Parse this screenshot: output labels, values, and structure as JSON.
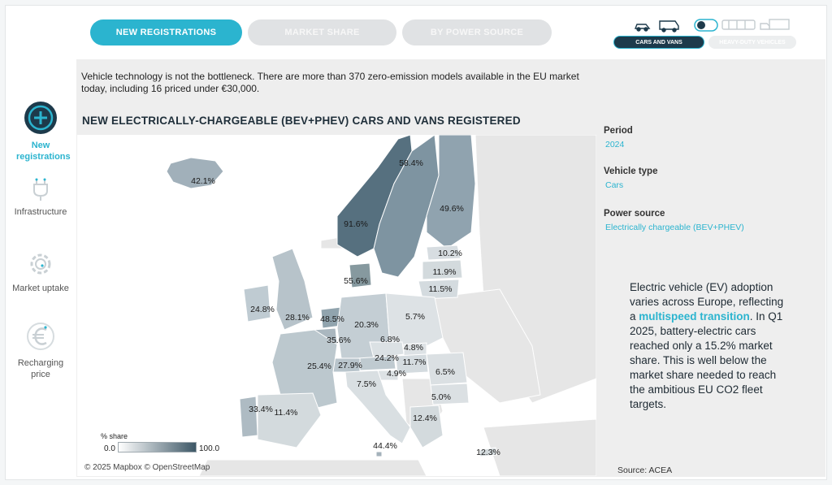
{
  "tabs": [
    {
      "label": "NEW REGISTRATIONS",
      "active": true
    },
    {
      "label": "MARKET SHARE",
      "active": false
    },
    {
      "label": "BY POWER SOURCE",
      "active": false
    }
  ],
  "vehicle_toggle": {
    "cars_label": "CARS AND VANS",
    "heavy_label": "HEAVY-DUTY VEHICLES",
    "selected": "cars"
  },
  "sidebar": {
    "items": [
      {
        "label": "New registrations",
        "icon": "plus-circle-icon",
        "active": true
      },
      {
        "label": "Infrastructure",
        "icon": "plug-icon",
        "active": false
      },
      {
        "label": "Market uptake",
        "icon": "gear-icon",
        "active": false
      },
      {
        "label": "Recharging price",
        "icon": "euro-icon",
        "active": false
      }
    ]
  },
  "intro_text": "Vehicle technology is not the bottleneck. There are more than 370 zero-emission models available in the EU market today, including 16 priced under €30,000.",
  "map": {
    "title": "NEW ELECTRICALLY-CHARGEABLE (BEV+PHEV) CARS AND VANS REGISTERED",
    "copyright": "© 2025 Mapbox © OpenStreetMap",
    "legend": {
      "title": "% share",
      "min": "0.0",
      "max": "100.0"
    },
    "values": [
      {
        "country": "Iceland",
        "label": "42.1%"
      },
      {
        "country": "Norway",
        "label": "91.6%"
      },
      {
        "country": "Sweden",
        "label": "58.4%"
      },
      {
        "country": "Finland",
        "label": "49.6%"
      },
      {
        "country": "Estonia",
        "label": "10.2%"
      },
      {
        "country": "Latvia",
        "label": "11.9%"
      },
      {
        "country": "Lithuania",
        "label": "11.5%"
      },
      {
        "country": "Denmark",
        "label": "55.6%"
      },
      {
        "country": "Ireland",
        "label": "24.8%"
      },
      {
        "country": "United Kingdom",
        "label": "28.1%"
      },
      {
        "country": "Netherlands",
        "label": "48.5%"
      },
      {
        "country": "Germany",
        "label": "20.3%"
      },
      {
        "country": "Poland",
        "label": "5.7%"
      },
      {
        "country": "Belgium",
        "label": "35.6%"
      },
      {
        "country": "Czechia",
        "label": "6.8%"
      },
      {
        "country": "Slovakia",
        "label": "4.8%"
      },
      {
        "country": "Austria",
        "label": "24.2%"
      },
      {
        "country": "Hungary",
        "label": "11.7%"
      },
      {
        "country": "France",
        "label": "25.4%"
      },
      {
        "country": "Switzerland",
        "label": "27.9%"
      },
      {
        "country": "Slovenia",
        "label": "4.9%"
      },
      {
        "country": "Romania",
        "label": "6.5%"
      },
      {
        "country": "Italy",
        "label": "7.5%"
      },
      {
        "country": "Bulgaria",
        "label": "5.0%"
      },
      {
        "country": "Portugal",
        "label": "33.4%"
      },
      {
        "country": "Spain",
        "label": "11.4%"
      },
      {
        "country": "Greece",
        "label": "12.4%"
      },
      {
        "country": "Malta",
        "label": "44.4%"
      },
      {
        "country": "Cyprus",
        "label": "12.3%"
      }
    ]
  },
  "filters": [
    {
      "label": "Period",
      "value": "2024"
    },
    {
      "label": "Vehicle type",
      "value": "Cars"
    },
    {
      "label": "Power source",
      "value": "Electrically chargeable (BEV+PHEV)"
    }
  ],
  "callout": {
    "before": "Electric vehicle (EV) adoption varies across Europe, reflecting a ",
    "highlight": "multispeed transition",
    "after": ". In Q1 2025, battery-electric cars reached only a 15.2% market share. This is well below the market share needed to reach the ambitious EU CO2 fleet targets."
  },
  "source": "Source: ACEA",
  "colors": {
    "accent": "#2bb4cf",
    "dark": "#1d3a4b",
    "map_max": "#3d5766"
  }
}
